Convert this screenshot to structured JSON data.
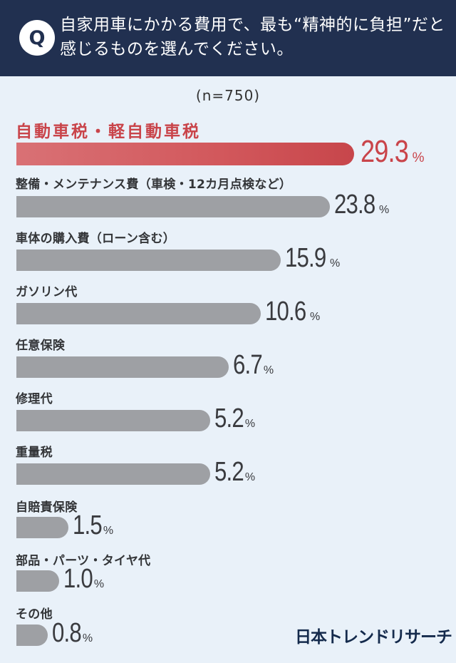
{
  "header": {
    "badge": "Q",
    "question": "自家用車にかかる費用で、最も“精神的に負担”だと感じるものを選んでください。"
  },
  "sample_size": "(n=750)",
  "logo": "日本トレンドリサーチ",
  "colors": {
    "header_bg": "#213050",
    "page_bg": "#e9f1f9",
    "highlight": "#c9444a",
    "bar_gray": "#9ea0a4",
    "value_text": "#3a3b3f",
    "logo": "#142a4c"
  },
  "items": [
    {
      "label": "自動車税・軽自動車税",
      "value": "29.3",
      "unit": "%",
      "highlight": true
    },
    {
      "label": "整備・メンテナンス費（車検・12カ月点検など）",
      "value": "23.8",
      "unit": "%"
    },
    {
      "label": "車体の購入費（ローン含む）",
      "value": "15.9",
      "unit": "%"
    },
    {
      "label": "ガソリン代",
      "value": "10.6",
      "unit": "%"
    },
    {
      "label": "任意保険",
      "value": "6.7",
      "unit": "%"
    },
    {
      "label": "修理代",
      "value": "5.2",
      "unit": "%"
    },
    {
      "label": "重量税",
      "value": "5.2",
      "unit": "%"
    },
    {
      "label": "自賠責保険",
      "value": "1.5",
      "unit": "%"
    },
    {
      "label": "部品・パーツ・タイヤ代",
      "value": "1.0",
      "unit": "%"
    },
    {
      "label": "その他",
      "value": "0.8",
      "unit": "%"
    }
  ],
  "chart_data": {
    "type": "bar",
    "orientation": "horizontal",
    "title": "自家用車にかかる費用で、最も“精神的に負担”だと感じるものを選んでください。",
    "subtitle": "(n=750)",
    "categories": [
      "自動車税・軽自動車税",
      "整備・メンテナンス費（車検・12カ月点検など）",
      "車体の購入費（ローン含む）",
      "ガソリン代",
      "任意保険",
      "修理代",
      "重量税",
      "自賠責保険",
      "部品・パーツ・タイヤ代",
      "その他"
    ],
    "values": [
      29.3,
      23.8,
      15.9,
      10.6,
      6.7,
      5.2,
      5.2,
      1.5,
      1.0,
      0.8
    ],
    "unit": "%",
    "highlighted_category": "自動車税・軽自動車税",
    "xlabel": "",
    "ylabel": "",
    "grid": false,
    "legend": null,
    "source": "日本トレンドリサーチ"
  }
}
